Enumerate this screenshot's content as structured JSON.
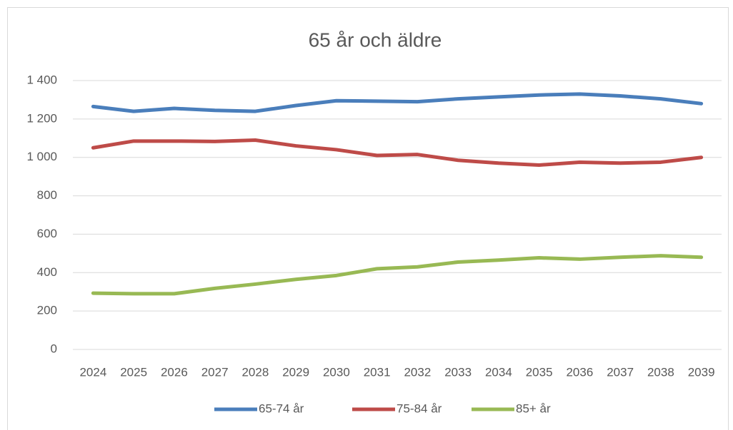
{
  "chart_data": {
    "type": "line",
    "title": "65 år och äldre",
    "categories": [
      "2024",
      "2025",
      "2026",
      "2027",
      "2028",
      "2029",
      "2030",
      "2031",
      "2032",
      "2033",
      "2034",
      "2035",
      "2036",
      "2037",
      "2038",
      "2039"
    ],
    "series": [
      {
        "name": "65-74 år",
        "color": "#4a7ebb",
        "values": [
          1265,
          1240,
          1255,
          1245,
          1240,
          1270,
          1295,
          1293,
          1290,
          1305,
          1315,
          1325,
          1330,
          1320,
          1305,
          1280
        ]
      },
      {
        "name": "75-84 år",
        "color": "#be4b48",
        "values": [
          1050,
          1085,
          1085,
          1083,
          1090,
          1060,
          1040,
          1010,
          1015,
          985,
          970,
          960,
          975,
          970,
          975,
          1000
        ]
      },
      {
        "name": "85+ år",
        "color": "#98b954",
        "values": [
          293,
          290,
          290,
          318,
          340,
          365,
          385,
          420,
          430,
          455,
          465,
          477,
          470,
          480,
          488,
          480
        ]
      }
    ],
    "ylim": [
      0,
      1400
    ],
    "yticks": [
      0,
      200,
      400,
      600,
      800,
      {
        "value": 1000,
        "label": "1 000"
      },
      {
        "value": 1200,
        "label": "1 200"
      },
      {
        "value": 1400,
        "label": "1 400"
      }
    ],
    "grid": true,
    "legend": "bottom"
  }
}
